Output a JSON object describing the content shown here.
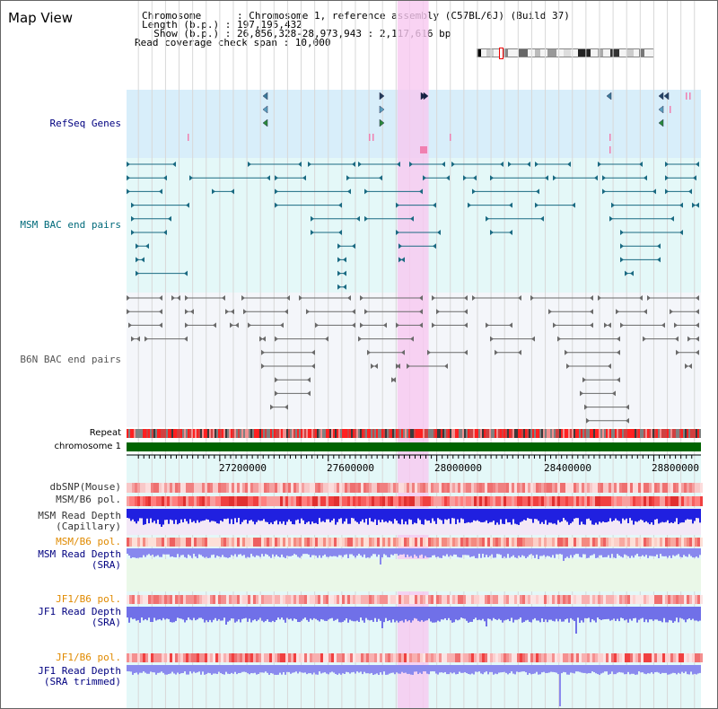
{
  "view": {
    "title": "Map View",
    "info_lines": [
      "Chromosome      : Chromosome 1, reference assembly (C57BL/6J) (Build 37)",
      "Length (b.p.) : 197,195,432",
      "  Show (b.p.) : 26,856,328-28,973,943 : 2,117,616 bp",
      "Read coverage check span : 10,000"
    ]
  },
  "tracks": {
    "refseq": "RefSeq Genes",
    "msm_bac": "MSM BAC end pairs",
    "b6n_bac": "B6N BAC end pairs",
    "repeat": "Repeat",
    "chromosome": "chromosome 1",
    "dbsnp": "dbSNP(Mouse)",
    "msm_b6_pol": "MSM/B6 pol.",
    "msm_depth_cap": "MSM Read Depth\n(Capillary)",
    "msm_b6_pol_2": "MSM/B6 pol.",
    "msm_depth_sra": "MSM Read Depth\n(SRA)",
    "jf1_b6_pol": "JF1/B6 pol.",
    "jf1_depth_sra": "JF1 Read Depth\n(SRA)",
    "jf1_b6_pol_2": "JF1/B6 pol.",
    "jf1_depth_trim": "JF1 Read Depth\n(SRA trimmed)"
  },
  "axis": {
    "ticks": [
      "27200000",
      "27600000",
      "28000000",
      "28400000",
      "28800000"
    ],
    "tick_values": [
      27200000,
      27600000,
      28000000,
      28400000,
      28800000
    ],
    "range": [
      26856328,
      28973943
    ]
  },
  "highlight": {
    "start": 27855000,
    "end": 27970000,
    "color": "#f8c8f0"
  },
  "colors": {
    "refseq_bg": "#d8eefa",
    "bac_bg": "#e4f8f8",
    "b6n_bg": "#f4f6fa",
    "sra_bg": "#eaf8e8",
    "chromosome": "#006400",
    "depth_blue": "#2020e0",
    "depth_light": "#8a8aee",
    "pol_red": "#ff4040"
  }
}
